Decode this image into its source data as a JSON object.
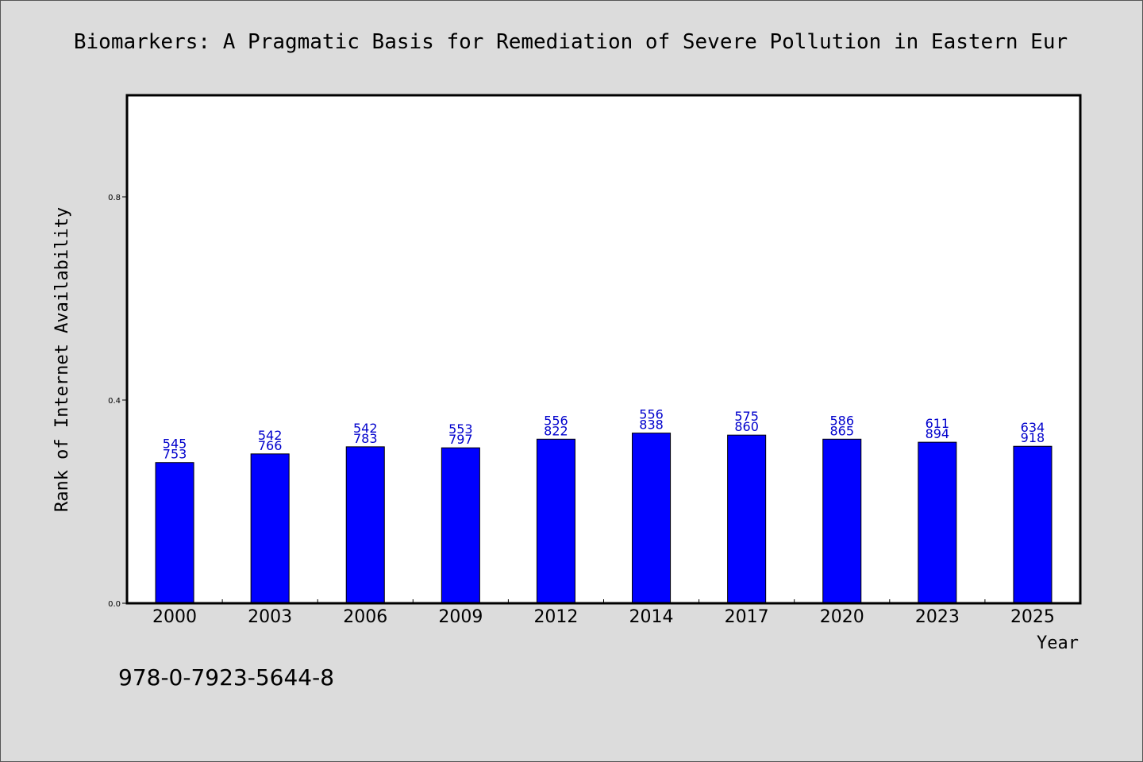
{
  "chart_data": {
    "type": "bar",
    "title": "Biomarkers: A Pragmatic Basis for Remediation of Severe Pollution in Eastern Eur",
    "xlabel": "Year",
    "ylabel": "Rank of Internet Availability",
    "categories": [
      "2000",
      "2003",
      "2006",
      "2009",
      "2012",
      "2014",
      "2017",
      "2020",
      "2023",
      "2025"
    ],
    "values": [
      0.277,
      0.294,
      0.308,
      0.306,
      0.323,
      0.335,
      0.331,
      0.323,
      0.317,
      0.309
    ],
    "labels_top": [
      "545",
      "542",
      "542",
      "553",
      "556",
      "556",
      "575",
      "586",
      "611",
      "634"
    ],
    "labels_bottom": [
      "753",
      "766",
      "783",
      "797",
      "822",
      "838",
      "860",
      "865",
      "894",
      "918"
    ],
    "ylim": [
      0,
      1.0
    ],
    "yticks": [
      0.0,
      0.4,
      0.8
    ],
    "ytick_labels": [
      "0.0",
      "0.4",
      "0.8"
    ],
    "bar_color": "#0000ff",
    "label_color": "#0000cc",
    "grid": false
  },
  "footer": {
    "isbn": "978-0-7923-5644-8"
  }
}
